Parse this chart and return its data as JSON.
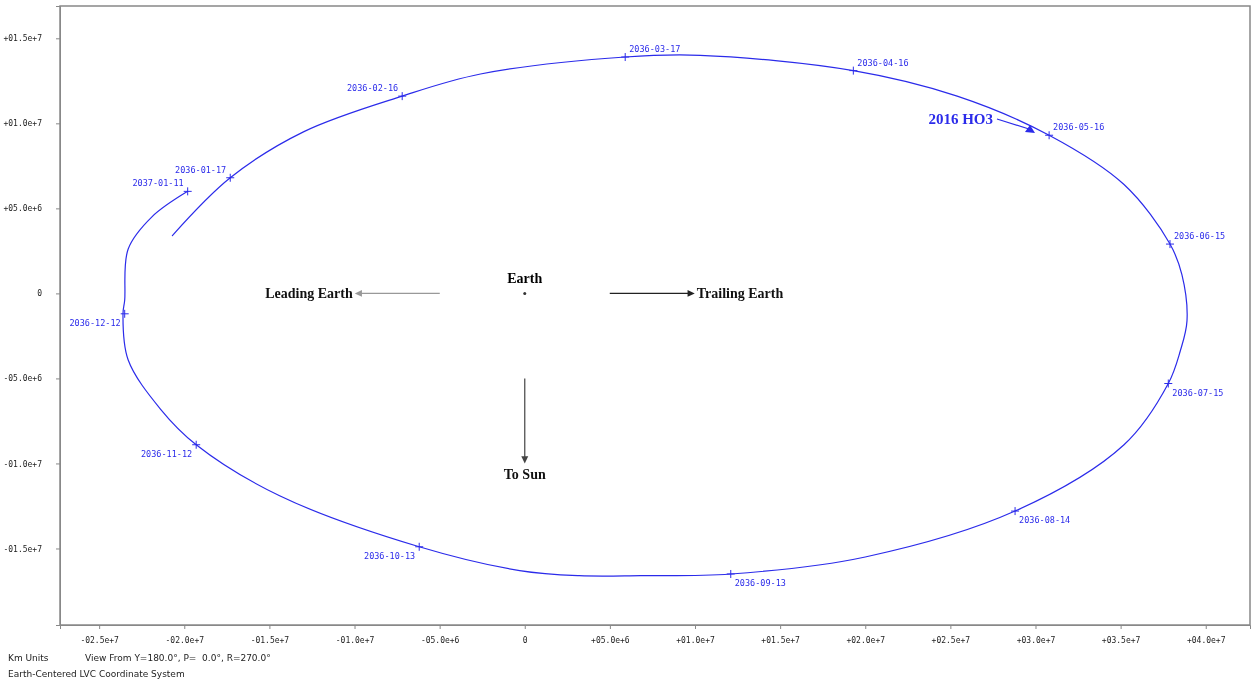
{
  "chart_data": {
    "type": "line",
    "xlim": [
      -27300000,
      42600000
    ],
    "ylim": [
      -19500000,
      16900000
    ],
    "xticks": [
      {
        "value": -25000000,
        "label": "-02.5e+7"
      },
      {
        "value": -20000000,
        "label": "-02.0e+7"
      },
      {
        "value": -15000000,
        "label": "-01.5e+7"
      },
      {
        "value": -10000000,
        "label": "-01.0e+7"
      },
      {
        "value": -5000000,
        "label": "-05.0e+6"
      },
      0,
      {
        "value": 5000000,
        "label": "+05.0e+6"
      },
      {
        "value": 10000000,
        "label": "+01.0e+7"
      },
      {
        "value": 15000000,
        "label": "+01.5e+7"
      },
      {
        "value": 20000000,
        "label": "+02.0e+7"
      },
      {
        "value": 25000000,
        "label": "+02.5e+7"
      },
      {
        "value": 30000000,
        "label": "+03.0e+7"
      },
      {
        "value": 35000000,
        "label": "+03.5e+7"
      },
      {
        "value": 40000000,
        "label": "+04.0e+7"
      }
    ],
    "yticks": [
      {
        "value": -15000000,
        "label": "-01.5e+7"
      },
      {
        "value": -10000000,
        "label": "-01.0e+7"
      },
      {
        "value": -5000000,
        "label": "-05.0e+6"
      },
      0,
      {
        "value": 5000000,
        "label": "+05.0e+6"
      },
      {
        "value": 10000000,
        "label": "+01.0e+7"
      },
      {
        "value": 15000000,
        "label": "+01.5e+7"
      }
    ],
    "grid": false,
    "series": [
      {
        "type": "line",
        "color": "#2b2bea",
        "marker": "none",
        "x": [
          -20700000,
          -17300000,
          -13000000,
          -7200000,
          -2600000,
          5900000,
          10300000,
          19300000,
          25400000,
          30800000,
          35200000,
          37900000,
          38600000,
          38900000,
          38500000,
          37800000,
          35200000,
          28800000,
          20000000,
          12100000,
          6800000,
          3200000,
          -300000,
          -6200000,
          -14400000,
          -19300000,
          -21400000,
          -23300000,
          -23600000,
          -23500000,
          -23300000,
          -21900000,
          -19800000
        ],
        "values": [
          3400000,
          6800000,
          9500000,
          11600000,
          12900000,
          13900000,
          14000000,
          13100000,
          11600000,
          9300000,
          6400000,
          2900000,
          1100000,
          -1600000,
          -3400000,
          -5300000,
          -8900000,
          -12800000,
          -15500000,
          -16500000,
          -16600000,
          -16600000,
          -16300000,
          -14900000,
          -11900000,
          -8900000,
          -6800000,
          -3900000,
          -1200000,
          -400000,
          2600000,
          4500000,
          6000000
        ]
      },
      {
        "type": "scatter",
        "color": "#2b2bea",
        "marker": "cross",
        "x": [
          -17300000,
          -7200000,
          5900000,
          19300000,
          30800000,
          37900000,
          37800000,
          28800000,
          12100000,
          -6200000,
          -19300000,
          -23500000,
          -19800000
        ],
        "values": [
          6800000,
          11600000,
          13900000,
          13100000,
          9300000,
          2900000,
          -5300000,
          -12800000,
          -16500000,
          -14900000,
          -8900000,
          -1200000,
          6000000
        ]
      }
    ],
    "annotations": [
      {
        "text": "2036-01-17",
        "x": -17300000,
        "y": 6800000
      },
      {
        "text": "2036-02-16",
        "x": -7200000,
        "y": 11600000
      },
      {
        "text": "2036-03-17",
        "x": 5900000,
        "y": 13900000
      },
      {
        "text": "2036-04-16",
        "x": 19300000,
        "y": 13100000
      },
      {
        "text": "2036-05-16",
        "x": 30800000,
        "y": 9300000
      },
      {
        "text": "2036-06-15",
        "x": 37900000,
        "y": 2900000
      },
      {
        "text": "2036-07-15",
        "x": 37800000,
        "y": -5300000
      },
      {
        "text": "2036-08-14",
        "x": 28800000,
        "y": -12800000
      },
      {
        "text": "2036-09-13",
        "x": 12100000,
        "y": -16500000
      },
      {
        "text": "2036-10-13",
        "x": -6200000,
        "y": -14900000
      },
      {
        "text": "2036-11-12",
        "x": -19300000,
        "y": -8900000
      },
      {
        "text": "2036-12-12",
        "x": -23500000,
        "y": -1200000
      },
      {
        "text": "2037-01-11",
        "x": -19800000,
        "y": 6000000
      },
      "Earth",
      "2016 HO3",
      "Leading Earth",
      "Trailing Earth",
      "To Sun",
      "Km Units",
      "View From Y=180.0°, P=  0.0°, R=270.0°",
      "Earth-Centered LVC Coordinate System"
    ]
  }
}
